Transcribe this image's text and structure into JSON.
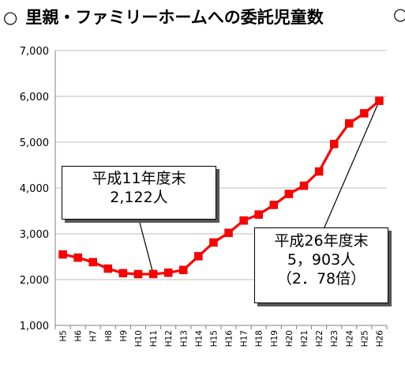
{
  "heading": {
    "mark": "○",
    "title": "里親・ファミリーホームへの委託児童数",
    "edge_mark": "○"
  },
  "chart_data": {
    "type": "line",
    "title": "里親・ファミリーホームへの委託児童数",
    "xlabel": "",
    "ylabel": "",
    "categories": [
      "H5",
      "H6",
      "H7",
      "H8",
      "H9",
      "H10",
      "H11",
      "H12",
      "H13",
      "H14",
      "H15",
      "H16",
      "H17",
      "H18",
      "H19",
      "H20",
      "H21",
      "H22",
      "H23",
      "H24",
      "H25",
      "H26"
    ],
    "series": [
      {
        "values": [
          2550,
          2480,
          2380,
          2240,
          2140,
          2120,
          2122,
          2150,
          2210,
          2510,
          2810,
          3020,
          3290,
          3420,
          3630,
          3870,
          4050,
          4360,
          4960,
          5410,
          5630,
          5903
        ]
      }
    ],
    "ylim": [
      1000,
      7000
    ],
    "yticks": [
      "1,000",
      "2,000",
      "3,000",
      "4,000",
      "5,000",
      "6,000",
      "7,000"
    ],
    "grid": true,
    "line_color": "#ff0000",
    "annotations": [
      {
        "lines": [
          "平成11年度末",
          "2,122人"
        ]
      },
      {
        "lines": [
          "平成26年度末",
          "5，903人",
          "（2．78倍）"
        ]
      }
    ]
  }
}
